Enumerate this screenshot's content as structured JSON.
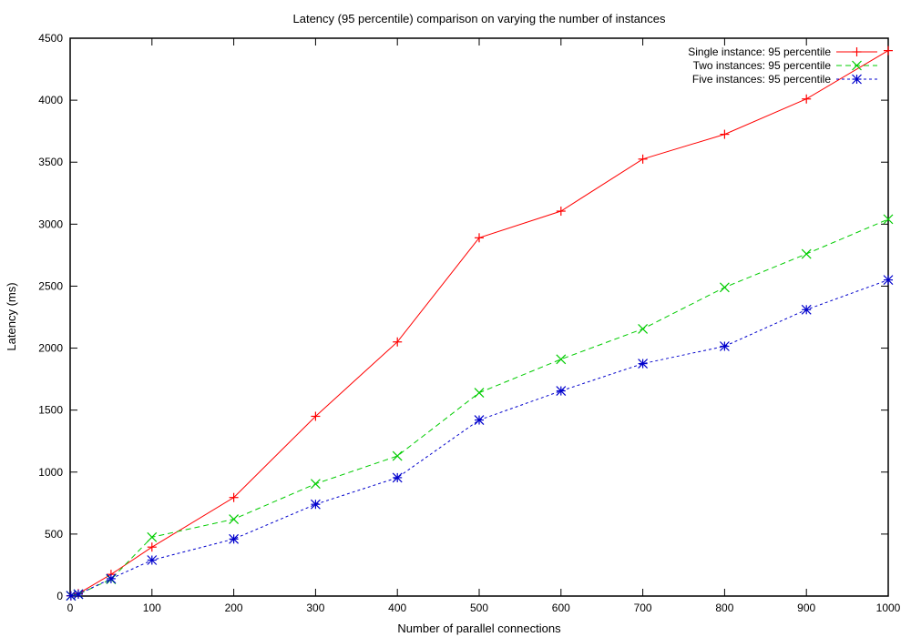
{
  "chart_data": {
    "type": "line",
    "title": "Latency (95 percentile) comparison on varying the number of instances",
    "xlabel": "Number of parallel connections",
    "ylabel": "Latency (ms)",
    "xlim": [
      0,
      1000
    ],
    "ylim": [
      0,
      4500
    ],
    "xticks": [
      0,
      100,
      200,
      300,
      400,
      500,
      600,
      700,
      800,
      900,
      1000
    ],
    "yticks": [
      0,
      500,
      1000,
      1500,
      2000,
      2500,
      3000,
      3500,
      4000,
      4500
    ],
    "grid": false,
    "legend_position": "top-right",
    "x": [
      1,
      10,
      50,
      100,
      200,
      300,
      400,
      500,
      600,
      700,
      800,
      900,
      1000
    ],
    "series": [
      {
        "name": "Single instance: 95 percentile",
        "color": "#ff0000",
        "marker": "plus",
        "dash": "solid",
        "values": [
          2,
          20,
          175,
          395,
          795,
          1450,
          2050,
          2890,
          3105,
          3525,
          3725,
          4010,
          4400
        ]
      },
      {
        "name": "Two instances: 95 percentile",
        "color": "#00cc00",
        "marker": "cross",
        "dash": "dashed",
        "values": [
          2,
          15,
          135,
          475,
          620,
          905,
          1130,
          1640,
          1910,
          2155,
          2490,
          2760,
          3040
        ]
      },
      {
        "name": "Five instances: 95 percentile",
        "color": "#0000cc",
        "marker": "star",
        "dash": "dotted",
        "values": [
          2,
          15,
          140,
          290,
          460,
          740,
          955,
          1420,
          1655,
          1875,
          2015,
          2310,
          2550
        ]
      }
    ]
  }
}
